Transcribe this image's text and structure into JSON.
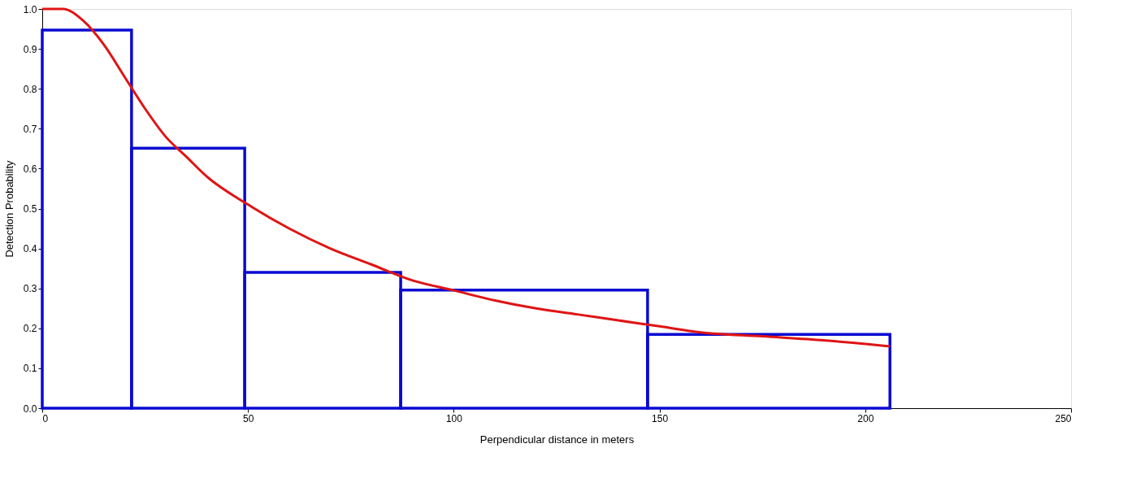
{
  "chart_data": {
    "type": "histogram",
    "xlabel": "Perpendicular distance in meters",
    "ylabel": "Detection Probability",
    "xlim": [
      0,
      250
    ],
    "xticks": [
      0,
      50,
      100,
      150,
      200,
      250
    ],
    "ylim": [
      0,
      1.0
    ],
    "yticks": [
      {
        "value": 0,
        "label": "0.0"
      },
      0.1,
      0.2,
      0.3,
      0.4,
      0.5,
      0.6,
      0.7,
      0.8,
      0.9,
      {
        "value": 1,
        "label": "1.0"
      }
    ],
    "grid": false,
    "series": [
      {
        "color": "#0a0ad2",
        "bins": [
          0,
          21.7,
          49.2,
          87.1,
          147.1,
          206
        ],
        "values": [
          0.947,
          0.651,
          0.34,
          0.296,
          0.185
        ]
      },
      {
        "type": "line",
        "color": "#e01414",
        "x": [
          0,
          5,
          10,
          15,
          20,
          25,
          30,
          35,
          40,
          50,
          60,
          70,
          80,
          90,
          100,
          110,
          120,
          130,
          140,
          150,
          160,
          175,
          190,
          206
        ],
        "values": [
          1.0,
          1.0,
          0.97,
          0.91,
          0.83,
          0.75,
          0.68,
          0.63,
          0.58,
          0.51,
          0.45,
          0.4,
          0.36,
          0.32,
          0.295,
          0.27,
          0.25,
          0.235,
          0.22,
          0.205,
          0.19,
          0.18,
          0.17,
          0.155
        ]
      }
    ]
  }
}
